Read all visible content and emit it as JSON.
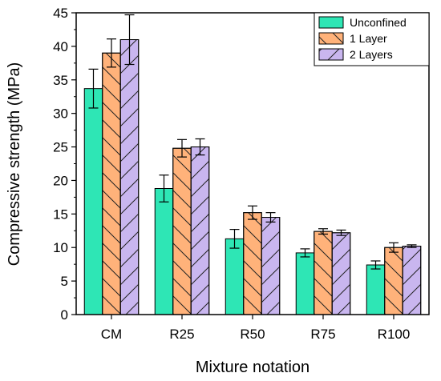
{
  "chart_data": {
    "type": "bar",
    "title": "",
    "xlabel": "Mixture notation",
    "ylabel": "Compressive strength (MPa)",
    "ylim": [
      0,
      45
    ],
    "yticks": [
      0,
      5,
      10,
      15,
      20,
      25,
      30,
      35,
      40,
      45
    ],
    "grid": false,
    "legend_position": "top-right",
    "categories": [
      "CM",
      "R25",
      "R50",
      "R75",
      "R100"
    ],
    "series": [
      {
        "name": "Unconfined",
        "color": "#2ee6b5",
        "pattern": "none",
        "values": [
          33.7,
          18.8,
          11.3,
          9.2,
          7.4
        ],
        "errors": [
          2.9,
          2.0,
          1.4,
          0.6,
          0.6
        ]
      },
      {
        "name": "1 Layer",
        "color": "#ffb27a",
        "pattern": "back-diagonal",
        "values": [
          39.0,
          24.8,
          15.2,
          12.4,
          10.0
        ],
        "errors": [
          2.1,
          1.3,
          1.0,
          0.4,
          0.7
        ]
      },
      {
        "name": "2 Layers",
        "color": "#c9b6ef",
        "pattern": "forward-diagonal",
        "values": [
          41.0,
          25.0,
          14.5,
          12.2,
          10.2
        ],
        "errors": [
          3.7,
          1.2,
          0.7,
          0.4,
          0.2
        ]
      }
    ]
  }
}
